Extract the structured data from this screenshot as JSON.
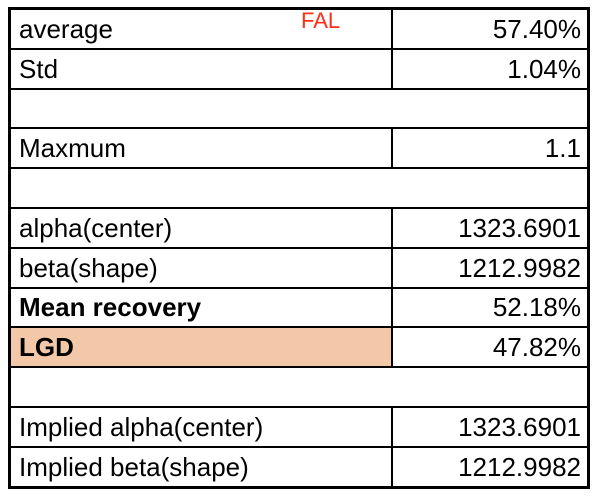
{
  "overlay": {
    "text": "FAL"
  },
  "table": {
    "rows": [
      {
        "label": "average",
        "value": "57.40%"
      },
      {
        "label": "Std",
        "value": "1.04%"
      },
      {
        "empty": true
      },
      {
        "label": "Maxmum",
        "value": "1.1"
      },
      {
        "empty": true
      },
      {
        "label": "alpha(center)",
        "value": "1323.6901"
      },
      {
        "label": "beta(shape)",
        "value": "1212.9982"
      },
      {
        "label": "Mean recovery",
        "value": "52.18%"
      },
      {
        "label": "LGD",
        "value": "47.82%"
      },
      {
        "empty": true
      },
      {
        "label": "Implied alpha(center)",
        "value": "1323.6901"
      },
      {
        "label": "Implied beta(shape)",
        "value": "1212.9982"
      }
    ]
  },
  "colors": {
    "background": "#FFFFFF",
    "border": "#000000",
    "text": "#000000",
    "highlight_fill": "#F2C8A8",
    "overlay_red": "#FF3018"
  }
}
